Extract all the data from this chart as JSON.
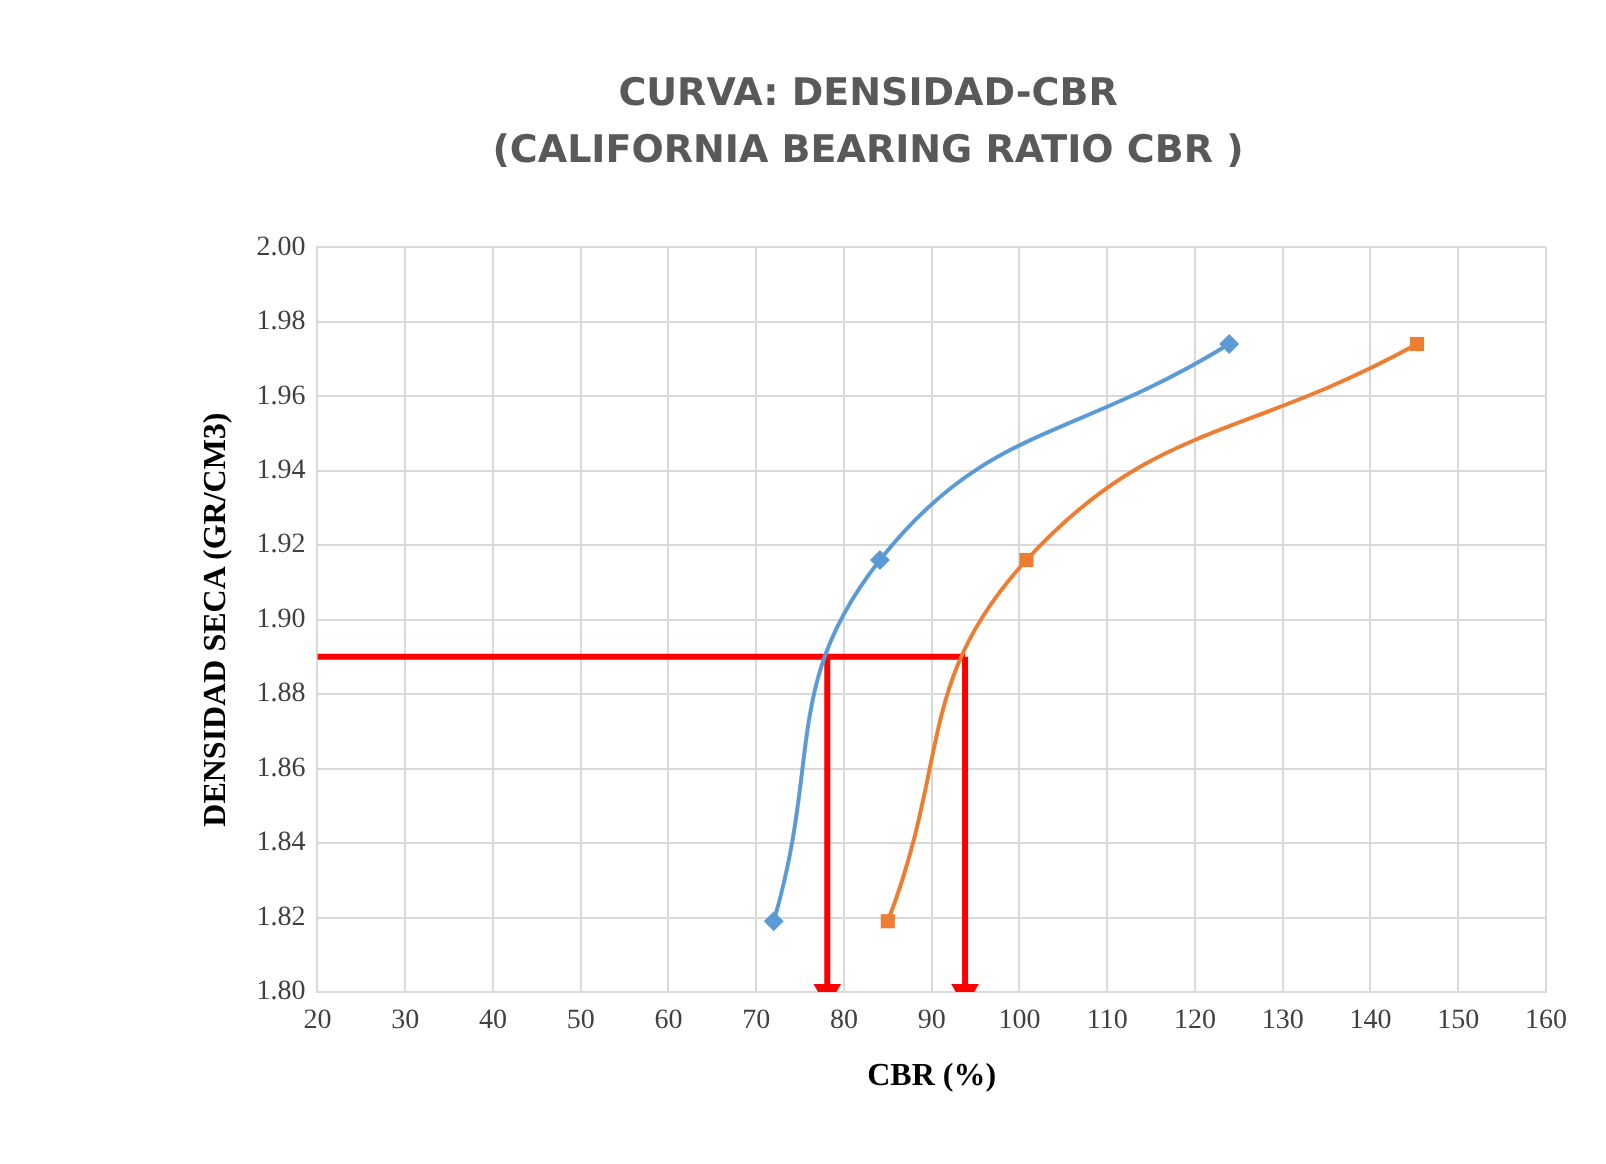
{
  "chart_data": {
    "type": "line",
    "title": "CURVA: DENSIDAD-CBR",
    "subtitle": "(CALIFORNIA BEARING RATIO CBR )",
    "xlabel": "CBR (%)",
    "ylabel": "DENSIDAD SECA (GR/CM3)",
    "xlim": [
      20,
      160
    ],
    "xticks": [
      20,
      30,
      40,
      50,
      60,
      70,
      80,
      90,
      100,
      110,
      120,
      130,
      140,
      150,
      160
    ],
    "ylim": [
      1.8,
      2.0
    ],
    "yticks": [
      {
        "value": 1.8,
        "label": "1.80"
      },
      {
        "value": 1.82,
        "label": "1.82"
      },
      {
        "value": 1.84,
        "label": "1.84"
      },
      {
        "value": 1.86,
        "label": "1.86"
      },
      {
        "value": 1.88,
        "label": "1.88"
      },
      {
        "value": 1.9,
        "label": "1.90"
      },
      {
        "value": 1.92,
        "label": "1.92"
      },
      {
        "value": 1.94,
        "label": "1.94"
      },
      {
        "value": 1.96,
        "label": "1.96"
      },
      {
        "value": 1.98,
        "label": "1.98"
      },
      {
        "value": 2.0,
        "label": "2.00"
      }
    ],
    "grid": true,
    "legend": false,
    "series": [
      {
        "type": "line",
        "color": "#5b9bd5",
        "marker": "diamond",
        "x": [
          72,
          84.1,
          123.9
        ],
        "values": [
          1.819,
          1.916,
          1.974
        ]
      },
      {
        "type": "line",
        "color": "#ed7d31",
        "marker": "square",
        "x": [
          85,
          100.8,
          145.3
        ],
        "values": [
          1.819,
          1.916,
          1.974
        ]
      },
      {
        "type": "line",
        "color": "#ff0000",
        "marker": "none",
        "x": [
          20,
          93.8
        ],
        "values": [
          1.89,
          1.89
        ]
      },
      {
        "type": "line",
        "color": "#ff0000",
        "marker": "triangle",
        "x": [
          78.1,
          78.1
        ],
        "values": [
          1.89,
          1.8
        ]
      },
      {
        "type": "line",
        "color": "#ff0000",
        "marker": "triangle",
        "x": [
          93.8,
          93.8
        ],
        "values": [
          1.89,
          1.8
        ]
      }
    ]
  }
}
